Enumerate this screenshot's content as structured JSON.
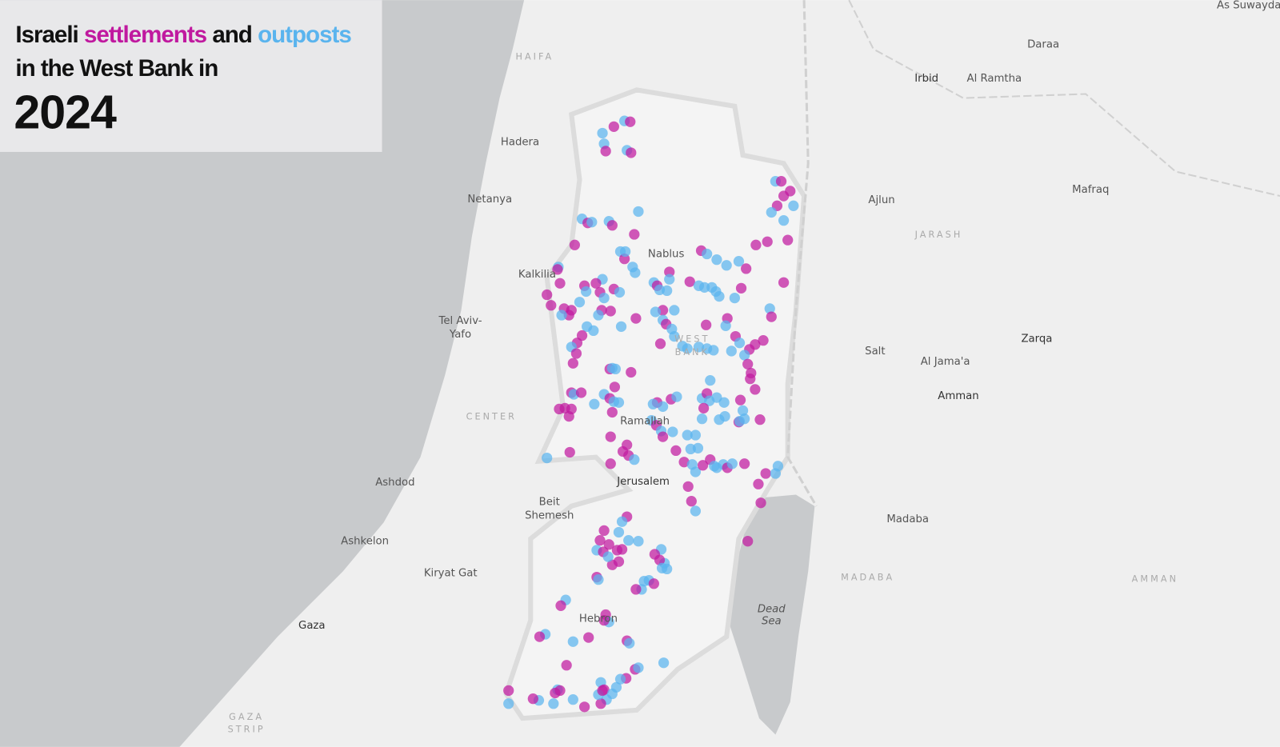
{
  "title": {
    "parts": [
      {
        "text": "Israeli"
      },
      {
        "text": "settlements",
        "color": "#c0199f"
      },
      {
        "text": "and"
      },
      {
        "text": "outposts",
        "color": "#5ab4ee"
      }
    ],
    "line2": "in the West Bank in",
    "year": "2024"
  },
  "places": [
    [
      "As Suwayda"
    ],
    [
      "Daraa"
    ],
    [
      "Irbid"
    ],
    [
      "Al Ramtha"
    ],
    [
      "HAIFA"
    ],
    [
      "Hadera"
    ],
    [
      "Netanya"
    ],
    [
      "Ajlun"
    ],
    [
      "Mafraq"
    ],
    [
      "JARASH"
    ],
    [
      "Nablus"
    ],
    [
      "Kalkilia"
    ],
    [
      "Tel Aviv-",
      "Yafo"
    ],
    [
      "WEST",
      "BANK"
    ],
    [
      "Zarqa"
    ],
    [
      "Salt"
    ],
    [
      "Al Jama'a"
    ],
    [
      "Amman"
    ],
    [
      "CENTER"
    ],
    [
      "Ramallah"
    ],
    [
      "Ashdod"
    ],
    [
      "Jerusalem"
    ],
    [
      "Beit",
      "Shemesh"
    ],
    [
      "Madaba"
    ],
    [
      "Ashkelon"
    ],
    [
      "Kiryat Gat"
    ],
    [
      "MADABA"
    ],
    [
      "AMMAN"
    ],
    [
      "Hebron"
    ],
    [
      "Dead",
      "Sea"
    ],
    [
      "Gaza"
    ],
    [
      "GAZA",
      "STRIP"
    ]
  ]
}
